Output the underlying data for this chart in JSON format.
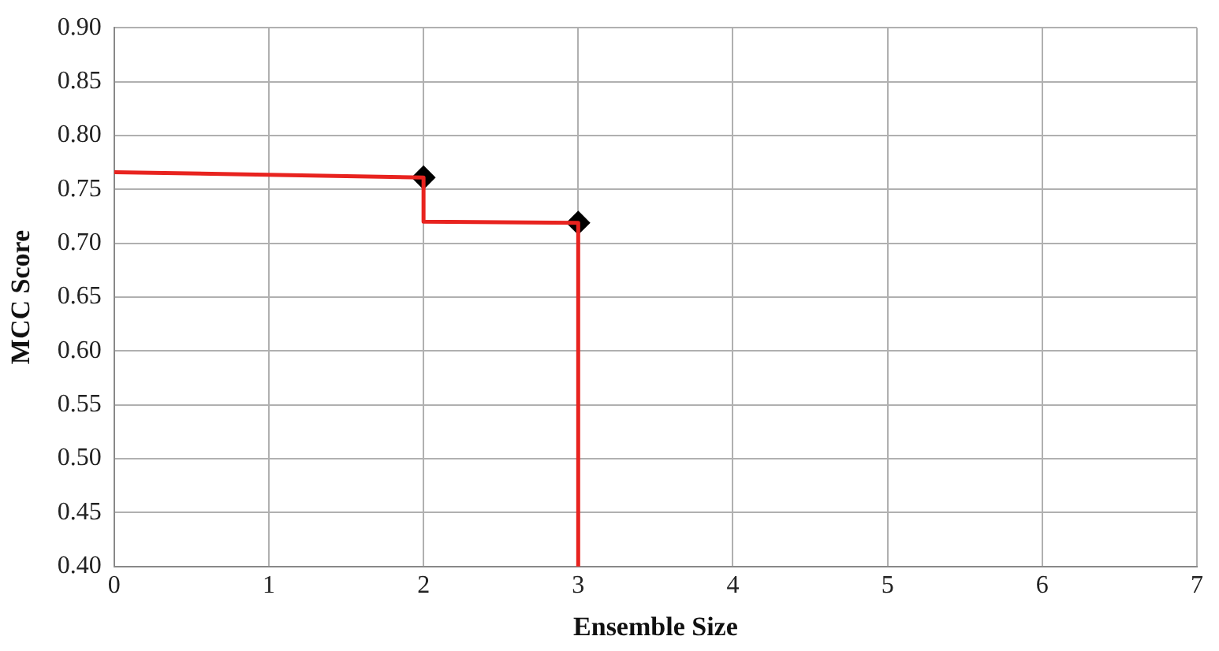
{
  "chart_data": {
    "type": "line",
    "xlabel": "Ensemble Size",
    "ylabel": "MCC Score",
    "xlim": [
      0,
      7
    ],
    "xticks": [
      0,
      1,
      2,
      3,
      4,
      5,
      6,
      7
    ],
    "ylim": [
      0.4,
      0.9
    ],
    "yticks": [
      {
        "value": 0.4,
        "label": "0.40"
      },
      {
        "value": 0.45,
        "label": "0.45"
      },
      {
        "value": 0.5,
        "label": "0.50"
      },
      {
        "value": 0.55,
        "label": "0.55"
      },
      {
        "value": 0.6,
        "label": "0.60"
      },
      {
        "value": 0.65,
        "label": "0.65"
      },
      {
        "value": 0.7,
        "label": "0.70"
      },
      {
        "value": 0.75,
        "label": "0.75"
      },
      {
        "value": 0.8,
        "label": "0.80"
      },
      {
        "value": 0.85,
        "label": "0.85"
      },
      {
        "value": 0.9,
        "label": "0.90"
      }
    ],
    "grid": true,
    "legend": false,
    "series": [
      {
        "color": "#e8231f",
        "marker": "none",
        "line_style": "solid",
        "x": [
          0,
          2,
          2,
          3,
          3
        ],
        "values": [
          0.766,
          0.761,
          0.72,
          0.719,
          0.4
        ]
      },
      {
        "type": "scatter",
        "color": "#000000",
        "marker": "diamond",
        "x": [
          2,
          3
        ],
        "values": [
          0.761,
          0.719
        ]
      }
    ]
  }
}
